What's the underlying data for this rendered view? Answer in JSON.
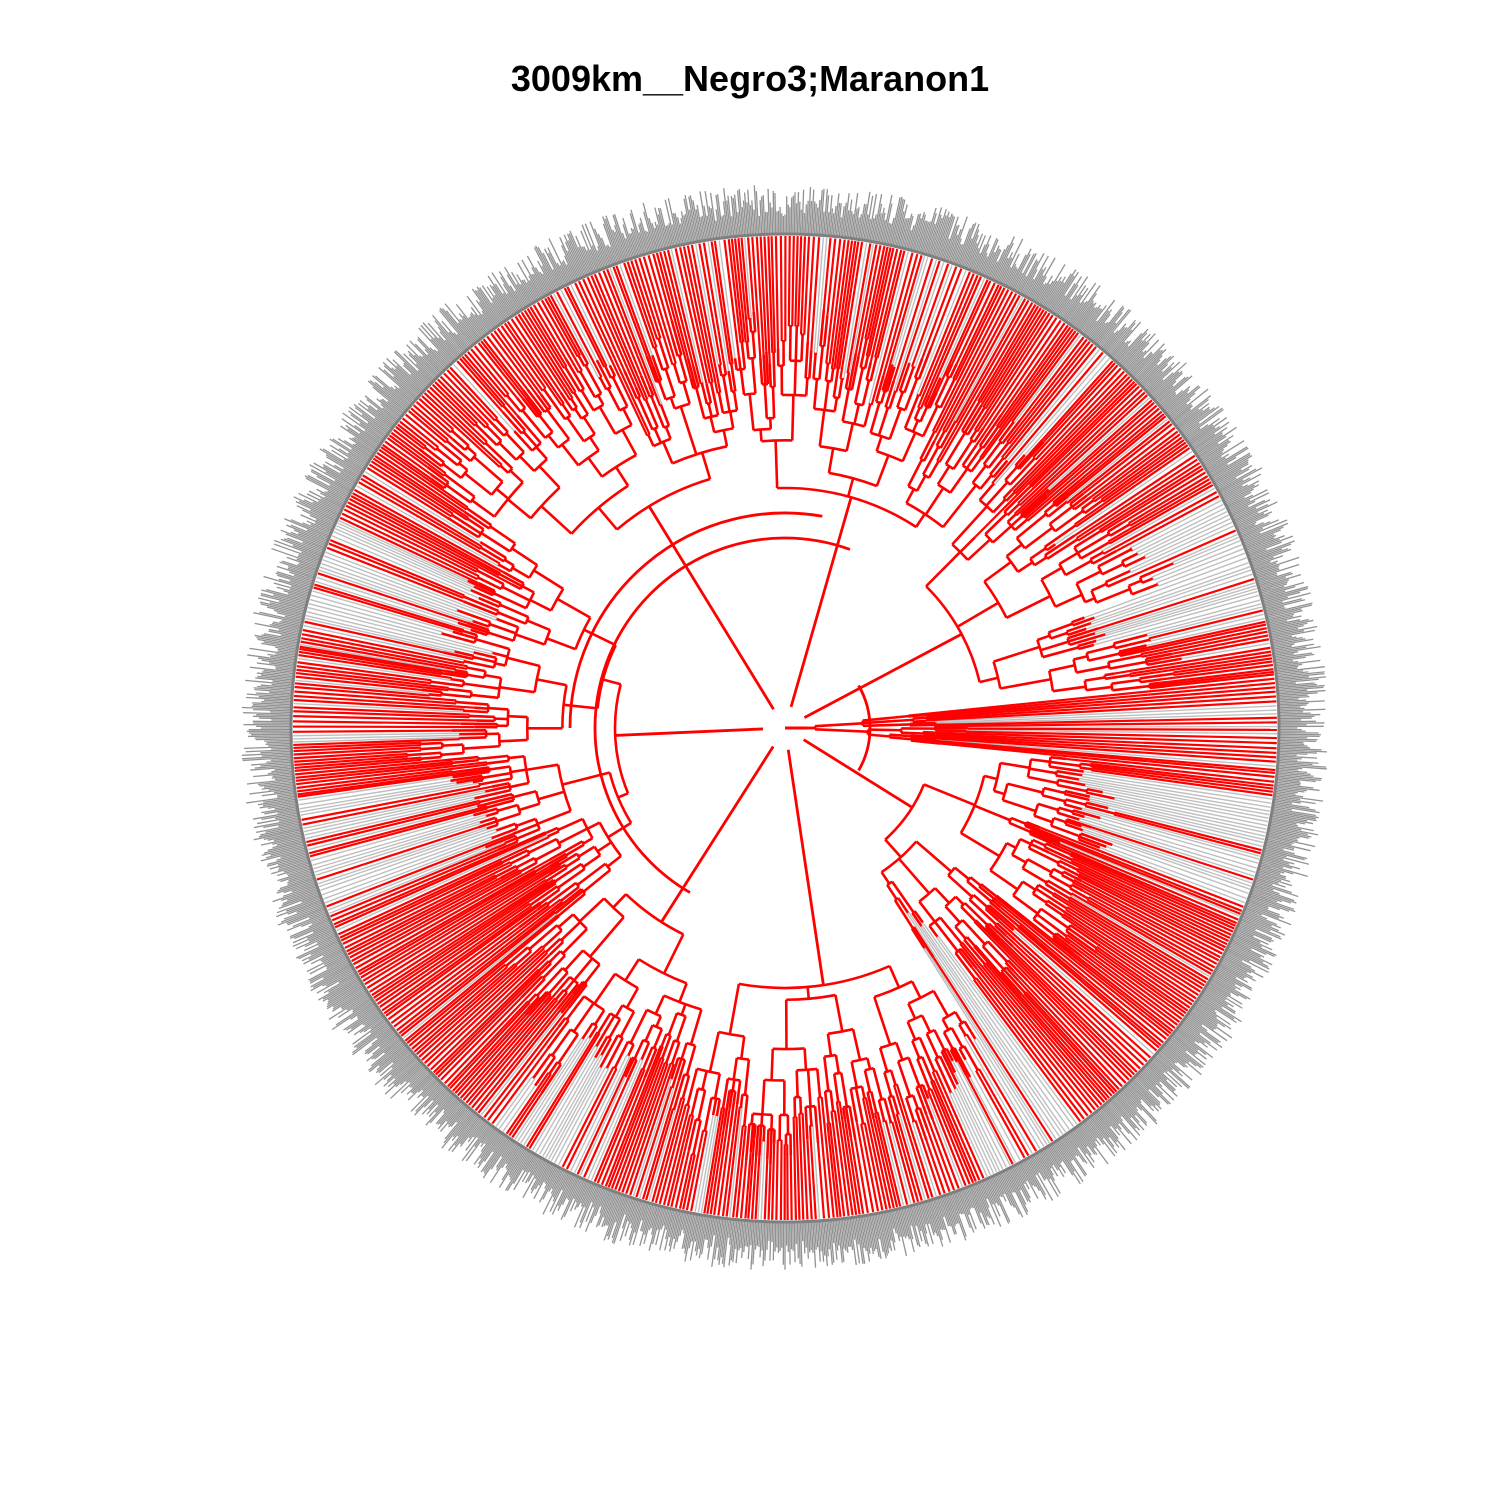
{
  "title": "3009km__Negro3;Maranon1",
  "tree": {
    "layout": "circular-fan",
    "highlight_color": "#ff0000",
    "background_branch_color": "#bfbfbf",
    "tip_label_color": "#7f7f7f",
    "tip_count_approx": 2000,
    "gray_clades_near_angles_deg": [
      -20,
      15,
      60,
      120,
      165,
      200
    ]
  }
}
